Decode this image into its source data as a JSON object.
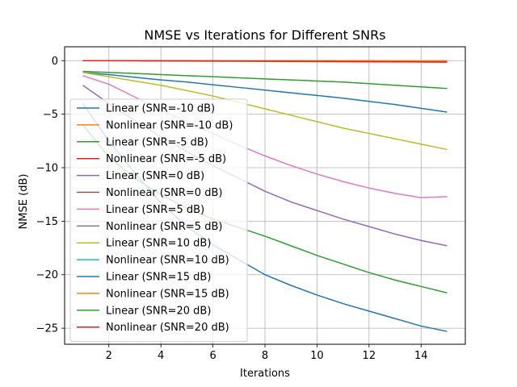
{
  "chart_data": {
    "type": "line",
    "title": "NMSE vs Iterations for Different SNRs",
    "xlabel": "Iterations",
    "ylabel": "NMSE (dB)",
    "xlim": [
      0.3,
      15.7
    ],
    "ylim": [
      -26.5,
      1.3
    ],
    "xticks": [
      2,
      4,
      6,
      8,
      10,
      12,
      14
    ],
    "yticks": [
      0,
      -5,
      -10,
      -15,
      -20,
      -25
    ],
    "grid": true,
    "legend_position": "center-left",
    "x": [
      1,
      2,
      3,
      4,
      5,
      6,
      7,
      8,
      9,
      10,
      11,
      12,
      13,
      14,
      15
    ],
    "series": [
      {
        "name": "Linear (SNR=-10 dB)",
        "color": "#1f77b4",
        "values": [
          -1.1,
          -1.3,
          -1.55,
          -1.8,
          -2.0,
          -2.25,
          -2.5,
          -2.75,
          -3.0,
          -3.25,
          -3.5,
          -3.8,
          -4.1,
          -4.45,
          -4.8
        ]
      },
      {
        "name": "Nonlinear (SNR=-10 dB)",
        "color": "#ff7f0e",
        "values": [
          0.0,
          -0.01,
          -0.02,
          -0.03,
          -0.04,
          -0.05,
          -0.06,
          -0.07,
          -0.08,
          -0.09,
          -0.1,
          -0.11,
          -0.12,
          -0.13,
          -0.14
        ]
      },
      {
        "name": "Linear (SNR=-5 dB)",
        "color": "#2ca02c",
        "values": [
          -1.0,
          -1.1,
          -1.2,
          -1.3,
          -1.4,
          -1.5,
          -1.6,
          -1.7,
          -1.8,
          -1.9,
          -2.0,
          -2.15,
          -2.3,
          -2.45,
          -2.6
        ]
      },
      {
        "name": "Nonlinear (SNR=-5 dB)",
        "color": "#d62728",
        "values": [
          0.0,
          0.0,
          -0.01,
          -0.01,
          -0.02,
          -0.02,
          -0.03,
          -0.03,
          -0.04,
          -0.04,
          -0.05,
          -0.05,
          -0.06,
          -0.06,
          -0.07
        ]
      },
      {
        "name": "Linear (SNR=0 dB)",
        "color": "#9467bd",
        "values": [
          -2.3,
          -4.0,
          -5.6,
          -7.1,
          -8.5,
          -9.8,
          -11.0,
          -12.2,
          -13.2,
          -14.0,
          -14.8,
          -15.5,
          -16.2,
          -16.8,
          -17.3
        ]
      },
      {
        "name": "Nonlinear (SNR=0 dB)",
        "color": "#8c564b",
        "values": [
          0.0,
          0.0,
          0.0,
          -0.01,
          -0.01,
          -0.01,
          -0.02,
          -0.02,
          -0.02,
          -0.03,
          -0.03,
          -0.03,
          -0.04,
          -0.04,
          -0.04
        ]
      },
      {
        "name": "Linear (SNR=5 dB)",
        "color": "#e377c2",
        "values": [
          -1.4,
          -2.2,
          -3.4,
          -4.6,
          -5.7,
          -6.8,
          -7.9,
          -8.9,
          -9.8,
          -10.6,
          -11.3,
          -11.9,
          -12.4,
          -12.8,
          -12.7
        ]
      },
      {
        "name": "Nonlinear (SNR=5 dB)",
        "color": "#7f7f7f",
        "values": [
          0.0,
          0.0,
          0.0,
          0.0,
          -0.01,
          -0.01,
          -0.01,
          -0.01,
          -0.02,
          -0.02,
          -0.02,
          -0.02,
          -0.03,
          -0.03,
          -0.03
        ]
      },
      {
        "name": "Linear (SNR=10 dB)",
        "color": "#bcbd22",
        "values": [
          -1.1,
          -1.5,
          -1.9,
          -2.3,
          -2.8,
          -3.3,
          -3.9,
          -4.5,
          -5.1,
          -5.7,
          -6.3,
          -6.8,
          -7.3,
          -7.8,
          -8.3
        ]
      },
      {
        "name": "Nonlinear (SNR=10 dB)",
        "color": "#17becf",
        "values": [
          0.0,
          0.0,
          0.0,
          0.0,
          0.0,
          -0.01,
          -0.01,
          -0.01,
          -0.01,
          -0.01,
          -0.02,
          -0.02,
          -0.02,
          -0.02,
          -0.02
        ]
      },
      {
        "name": "Linear (SNR=15 dB)",
        "color": "#1f77b4",
        "values": [
          -4.0,
          -7.5,
          -10.5,
          -13.3,
          -15.5,
          -17.2,
          -18.6,
          -20.0,
          -21.0,
          -21.9,
          -22.7,
          -23.4,
          -24.1,
          -24.8,
          -25.3
        ]
      },
      {
        "name": "Nonlinear (SNR=15 dB)",
        "color": "#ff7f0e",
        "values": [
          0.0,
          0.0,
          0.0,
          0.0,
          0.0,
          0.0,
          -0.01,
          -0.01,
          -0.01,
          -0.01,
          -0.01,
          -0.01,
          -0.02,
          -0.02,
          -0.02
        ]
      },
      {
        "name": "Linear (SNR=20 dB)",
        "color": "#2ca02c",
        "values": [
          -6.0,
          -9.0,
          -11.0,
          -12.5,
          -13.8,
          -14.8,
          -15.6,
          -16.4,
          -17.3,
          -18.2,
          -19.0,
          -19.8,
          -20.5,
          -21.1,
          -21.7
        ]
      },
      {
        "name": "Nonlinear (SNR=20 dB)",
        "color": "#d62728",
        "values": [
          0.0,
          0.0,
          0.0,
          -0.01,
          -0.02,
          -0.03,
          -0.04,
          -0.05,
          -0.06,
          -0.07,
          -0.08,
          -0.09,
          -0.1,
          -0.11,
          -0.12
        ]
      }
    ]
  }
}
